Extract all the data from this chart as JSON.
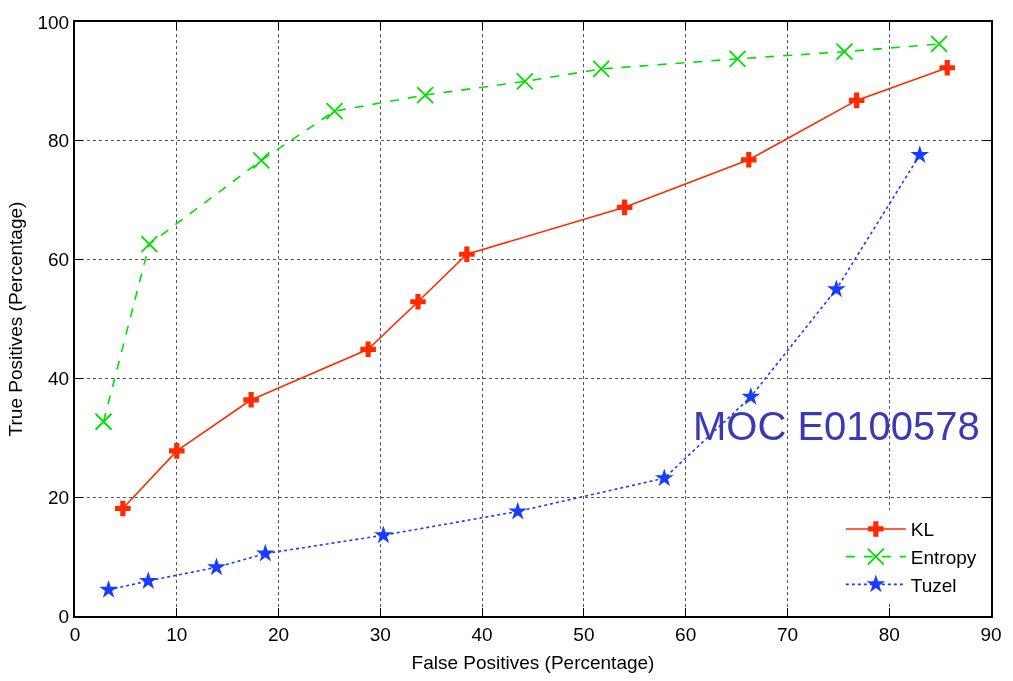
{
  "chart_data": {
    "type": "line",
    "xlabel": "False Positives (Percentage)",
    "ylabel": "True Positives (Percentage)",
    "xlim": [
      0,
      90
    ],
    "xticks": [
      0,
      10,
      20,
      30,
      40,
      50,
      60,
      70,
      80,
      90
    ],
    "ylim": [
      0,
      100
    ],
    "yticks": [
      0,
      20,
      40,
      60,
      80,
      100
    ],
    "grid": true,
    "legend": "bottom right",
    "series": [
      {
        "name": "KL",
        "color": "#ff2a00",
        "marker": "cross",
        "line_style": "solid",
        "x": [
          4.7,
          10.0,
          17.3,
          28.8,
          33.7,
          38.5,
          54.0,
          66.2,
          76.8,
          85.7
        ],
        "values": [
          18.1,
          27.8,
          36.4,
          44.9,
          52.9,
          60.9,
          68.8,
          76.8,
          86.8,
          92.3
        ]
      },
      {
        "name": "Entropy",
        "color": "#00e000",
        "marker": "x",
        "line_style": "dashed",
        "x": [
          2.8,
          7.3,
          18.3,
          25.5,
          34.4,
          44.2,
          51.7,
          65.1,
          75.6,
          84.9
        ],
        "values": [
          32.7,
          62.6,
          76.7,
          85.0,
          87.7,
          90.0,
          92.1,
          93.8,
          95.0,
          96.3
        ]
      },
      {
        "name": "Tuzel",
        "color": "#1a3cff",
        "marker": "star",
        "line_style": "dotted",
        "x": [
          3.3,
          7.2,
          13.9,
          18.7,
          30.3,
          43.5,
          57.9,
          66.4,
          74.8,
          83.0
        ],
        "values": [
          4.4,
          5.9,
          8.2,
          10.5,
          13.6,
          17.6,
          23.2,
          36.9,
          55.0,
          77.6
        ]
      }
    ],
    "annotations": [
      "MOC E0100578"
    ]
  }
}
